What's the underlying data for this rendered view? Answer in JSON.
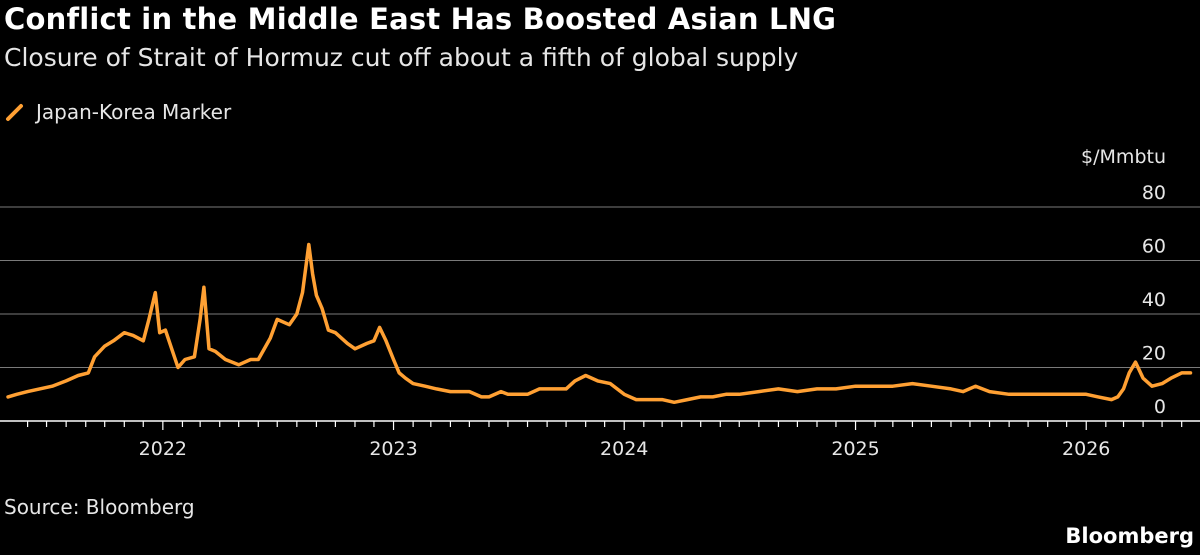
{
  "header": {
    "title": "Conflict in the Middle East Has Boosted Asian LNG",
    "subtitle": "Closure of Strait of Hormuz cut off about a fifth of global supply"
  },
  "footer": {
    "source": "Source: Bloomberg",
    "brand": "Bloomberg"
  },
  "chart_data": {
    "type": "line",
    "ylabel": "$/Mmbtu",
    "ylim": [
      0,
      80
    ],
    "yticks": [
      0,
      20,
      40,
      60,
      80
    ],
    "xlim": [
      "2021-05-01",
      "2026-06-30"
    ],
    "xticks": [
      {
        "date": "2022-01-01",
        "label": "2022"
      },
      {
        "date": "2023-01-01",
        "label": "2023"
      },
      {
        "date": "2024-01-01",
        "label": "2024"
      },
      {
        "date": "2025-01-01",
        "label": "2025"
      },
      {
        "date": "2026-01-01",
        "label": "2026"
      }
    ],
    "grid": true,
    "legend_position": "top-left",
    "series": [
      {
        "name": "Japan-Korea Marker",
        "color": "#ffa033",
        "x": [
          "2021-05-01",
          "2021-05-15",
          "2021-06-01",
          "2021-06-20",
          "2021-07-10",
          "2021-08-01",
          "2021-08-20",
          "2021-09-05",
          "2021-09-15",
          "2021-10-01",
          "2021-10-15",
          "2021-11-01",
          "2021-11-15",
          "2021-12-01",
          "2021-12-10",
          "2021-12-20",
          "2021-12-27",
          "2022-01-05",
          "2022-01-15",
          "2022-01-25",
          "2022-02-05",
          "2022-02-20",
          "2022-03-01",
          "2022-03-07",
          "2022-03-15",
          "2022-03-25",
          "2022-04-10",
          "2022-05-01",
          "2022-05-20",
          "2022-06-01",
          "2022-06-20",
          "2022-07-01",
          "2022-07-20",
          "2022-08-01",
          "2022-08-10",
          "2022-08-20",
          "2022-08-26",
          "2022-09-01",
          "2022-09-10",
          "2022-09-20",
          "2022-10-01",
          "2022-10-20",
          "2022-11-01",
          "2022-11-20",
          "2022-12-01",
          "2022-12-10",
          "2022-12-20",
          "2023-01-01",
          "2023-01-10",
          "2023-01-20",
          "2023-02-01",
          "2023-02-20",
          "2023-03-10",
          "2023-04-01",
          "2023-05-01",
          "2023-05-20",
          "2023-06-01",
          "2023-06-20",
          "2023-07-01",
          "2023-07-20",
          "2023-08-01",
          "2023-08-20",
          "2023-09-10",
          "2023-10-01",
          "2023-10-15",
          "2023-11-01",
          "2023-11-20",
          "2023-12-10",
          "2024-01-01",
          "2024-01-20",
          "2024-02-10",
          "2024-03-01",
          "2024-03-20",
          "2024-04-10",
          "2024-05-01",
          "2024-05-20",
          "2024-06-10",
          "2024-07-01",
          "2024-08-01",
          "2024-09-01",
          "2024-10-01",
          "2024-11-01",
          "2024-12-01",
          "2025-01-01",
          "2025-02-01",
          "2025-03-01",
          "2025-04-01",
          "2025-05-01",
          "2025-06-01",
          "2025-06-20",
          "2025-07-10",
          "2025-08-01",
          "2025-09-01",
          "2025-10-01",
          "2025-11-01",
          "2025-12-01",
          "2026-01-01",
          "2026-01-20",
          "2026-02-10",
          "2026-02-20",
          "2026-03-01",
          "2026-03-10",
          "2026-03-20",
          "2026-04-01",
          "2026-04-15",
          "2026-05-01",
          "2026-05-15",
          "2026-06-01",
          "2026-06-15"
        ],
        "values": [
          9,
          10,
          11,
          12,
          13,
          15,
          17,
          18,
          24,
          28,
          30,
          33,
          32,
          30,
          38,
          48,
          33,
          34,
          27,
          20,
          23,
          24,
          38,
          50,
          27,
          26,
          23,
          21,
          23,
          23,
          31,
          38,
          36,
          40,
          48,
          66,
          55,
          47,
          42,
          34,
          33,
          29,
          27,
          29,
          30,
          35,
          30,
          23,
          18,
          16,
          14,
          13,
          12,
          11,
          11,
          9,
          9,
          11,
          10,
          10,
          10,
          12,
          12,
          12,
          15,
          17,
          15,
          14,
          10,
          8,
          8,
          8,
          7,
          8,
          9,
          9,
          10,
          10,
          11,
          12,
          11,
          12,
          12,
          13,
          13,
          13,
          14,
          13,
          12,
          11,
          13,
          11,
          10,
          10,
          10,
          10,
          10,
          9,
          8,
          9,
          12,
          18,
          22,
          16,
          13,
          14,
          16,
          18,
          18
        ]
      }
    ]
  }
}
